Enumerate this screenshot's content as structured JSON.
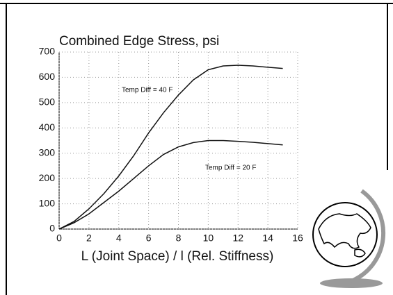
{
  "chart_data": {
    "type": "line",
    "title": "Combined Edge Stress, psi",
    "x_label": "L (Joint Space) / l (Rel. Stiffness)",
    "x": [
      0,
      1,
      2,
      3,
      4,
      5,
      6,
      7,
      8,
      9,
      10,
      11,
      12,
      13,
      14,
      15
    ],
    "series": [
      {
        "name": "Temp Diff = 40 F",
        "color": "#111111",
        "values": [
          0,
          30,
          80,
          140,
          210,
          290,
          380,
          460,
          530,
          590,
          630,
          645,
          648,
          645,
          640,
          635
        ]
      },
      {
        "name": "Temp Diff = 20 F",
        "color": "#111111",
        "values": [
          0,
          25,
          60,
          105,
          150,
          200,
          250,
          295,
          325,
          342,
          350,
          350,
          347,
          343,
          338,
          333
        ]
      }
    ],
    "xlim": [
      0,
      16
    ],
    "xticks": [
      0,
      2,
      4,
      6,
      8,
      10,
      12,
      14,
      16
    ],
    "ylim": [
      0,
      700
    ],
    "yticks": [
      0,
      100,
      200,
      300,
      400,
      500,
      600,
      700
    ],
    "grid": true
  }
}
